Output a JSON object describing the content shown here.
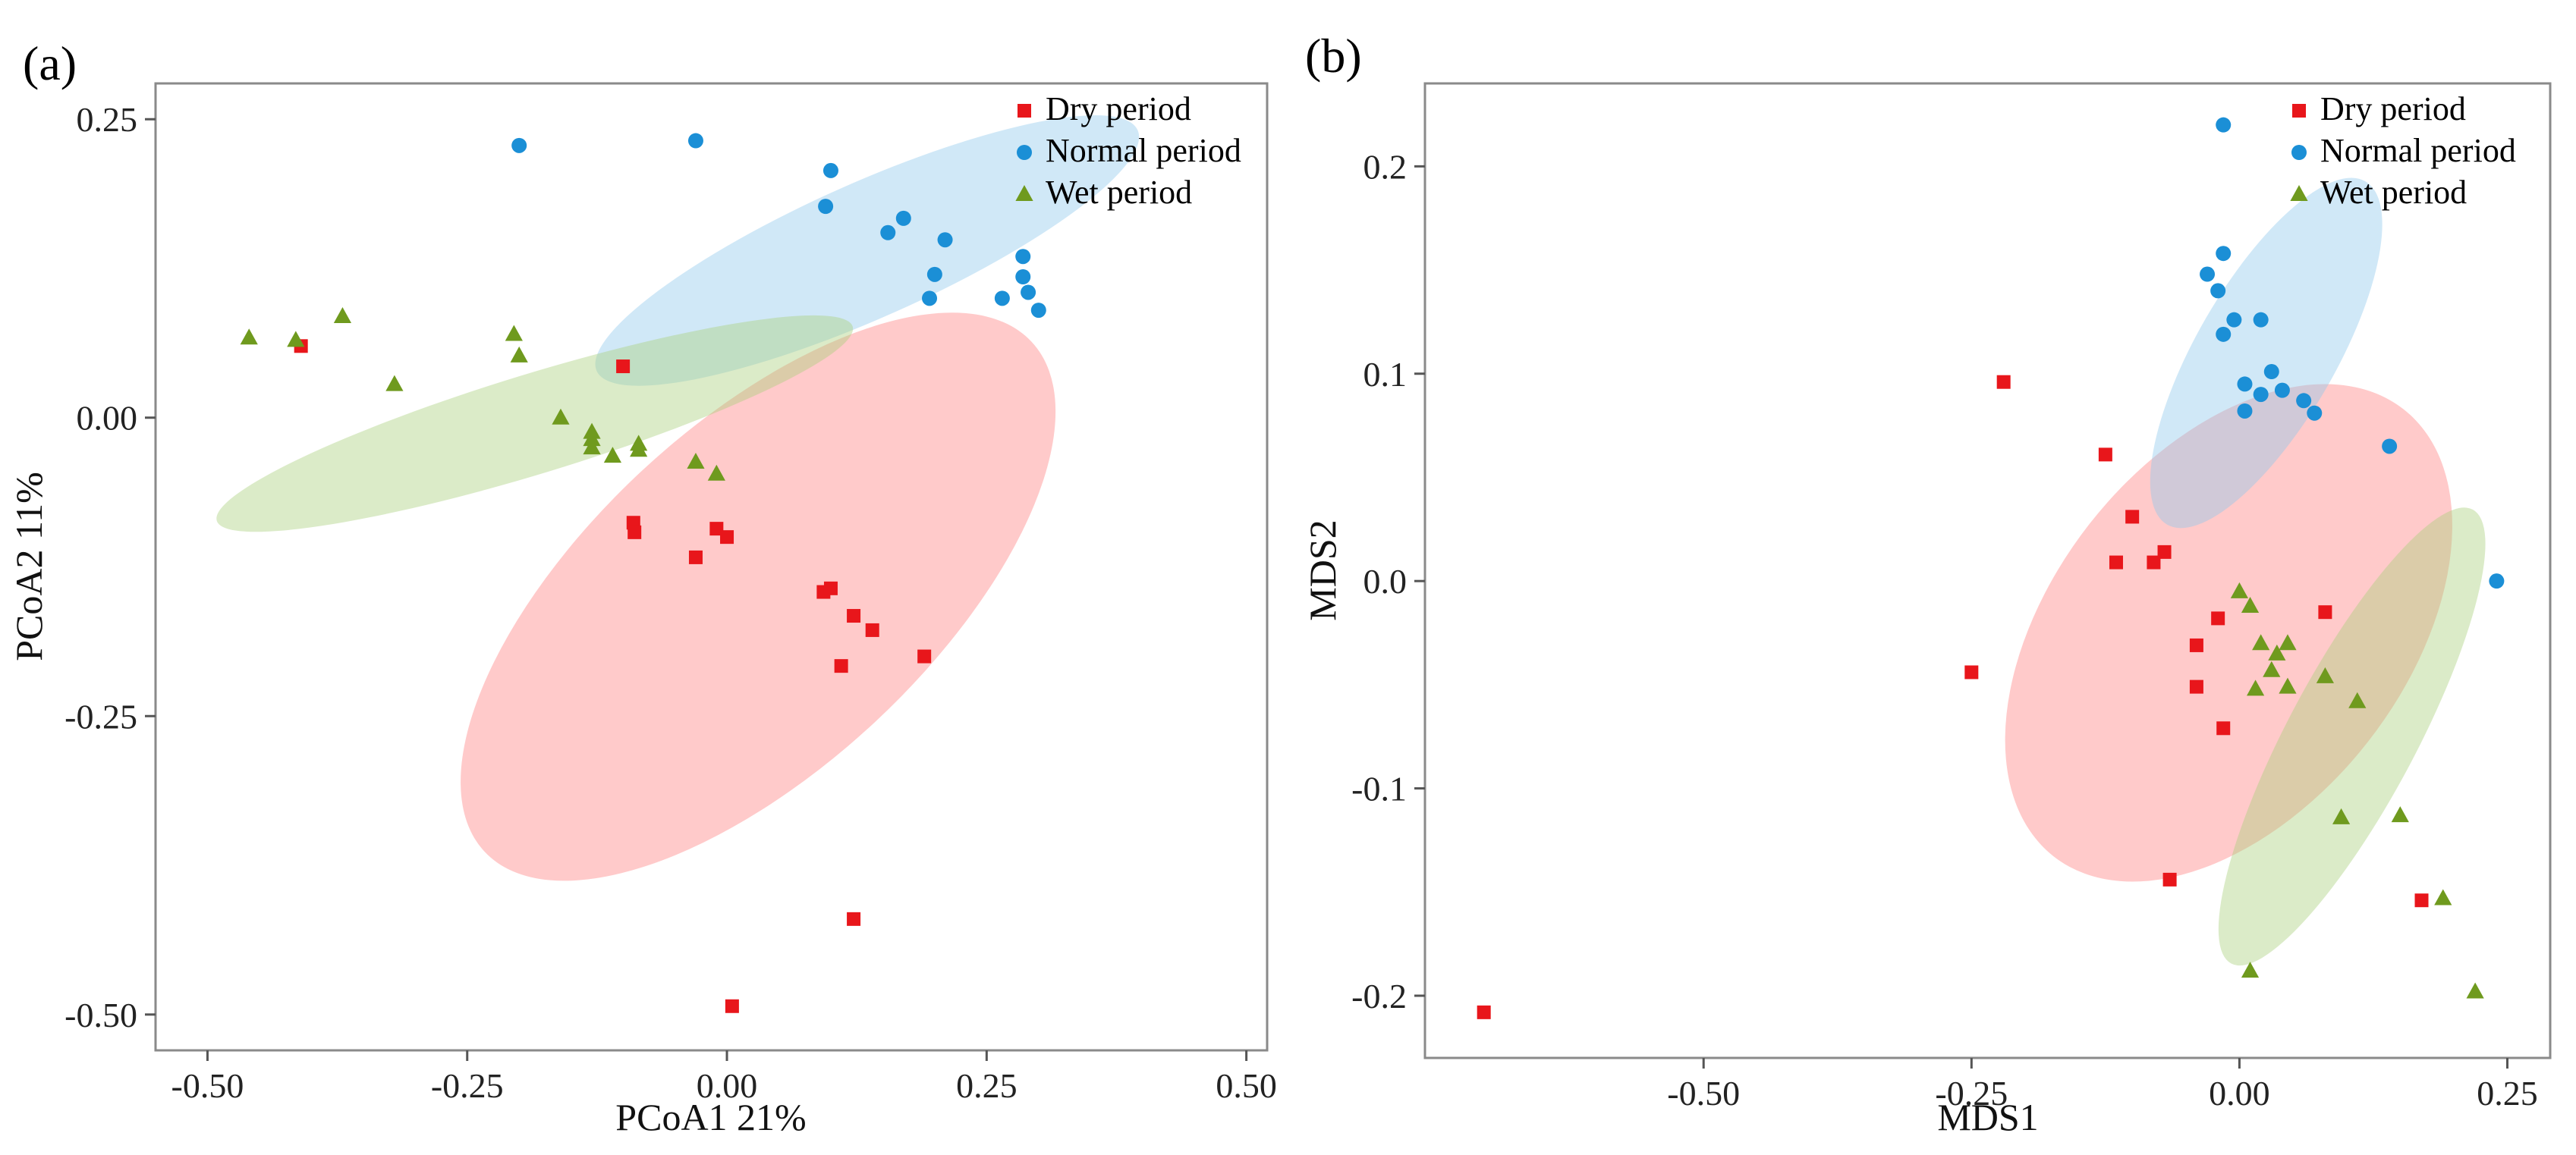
{
  "figure": {
    "panels": [
      "(a)",
      "(b)"
    ]
  },
  "colors": {
    "dry": "#e8161b",
    "normal": "#1b8fd6",
    "wet": "#6f9a1e",
    "dry_ellipse": "#ff8080",
    "normal_ellipse": "#8ec8ec",
    "wet_ellipse": "#a9cf7b"
  },
  "chart_data": [
    {
      "type": "scatter",
      "panel": "(a)",
      "title": "",
      "xlabel": "PCoA1 21%",
      "ylabel": "PCoA2 11%",
      "xlim": [
        -0.55,
        0.52
      ],
      "ylim": [
        -0.53,
        0.28
      ],
      "xticks": [
        -0.5,
        -0.25,
        0.0,
        0.25,
        0.5
      ],
      "xtick_labels": [
        "-0.50",
        "-0.25",
        "0.00",
        "0.25",
        "0.50"
      ],
      "yticks": [
        0.25,
        0.0,
        -0.25,
        -0.5
      ],
      "ytick_labels": [
        "0.25",
        "0.00",
        "-0.25",
        "-0.50"
      ],
      "grid": false,
      "legend_position": "top-right",
      "series": [
        {
          "name": "Dry period",
          "marker": "square",
          "color_key": "dry",
          "points": [
            [
              -0.41,
              0.06
            ],
            [
              -0.1,
              0.043
            ],
            [
              -0.09,
              -0.088
            ],
            [
              -0.089,
              -0.096
            ],
            [
              -0.03,
              -0.117
            ],
            [
              -0.01,
              -0.093
            ],
            [
              0.0,
              -0.1
            ],
            [
              0.093,
              -0.146
            ],
            [
              0.1,
              -0.143
            ],
            [
              0.122,
              -0.166
            ],
            [
              0.14,
              -0.178
            ],
            [
              0.11,
              -0.208
            ],
            [
              0.19,
              -0.2
            ],
            [
              0.122,
              -0.42
            ],
            [
              0.005,
              -0.493
            ]
          ],
          "ellipse": {
            "cx": 0.03,
            "cy": -0.15,
            "rx": 0.36,
            "ry": 0.165,
            "angle_deg": 43
          }
        },
        {
          "name": "Normal period",
          "marker": "circle",
          "color_key": "normal",
          "points": [
            [
              -0.2,
              0.228
            ],
            [
              -0.03,
              0.232
            ],
            [
              0.1,
              0.207
            ],
            [
              0.095,
              0.177
            ],
            [
              0.17,
              0.167
            ],
            [
              0.21,
              0.149
            ],
            [
              0.155,
              0.155
            ],
            [
              0.2,
              0.12
            ],
            [
              0.195,
              0.1
            ],
            [
              0.265,
              0.1
            ],
            [
              0.285,
              0.135
            ],
            [
              0.285,
              0.118
            ],
            [
              0.29,
              0.105
            ],
            [
              0.3,
              0.09
            ]
          ],
          "ellipse": {
            "cx": 0.135,
            "cy": 0.14,
            "rx": 0.285,
            "ry": 0.065,
            "angle_deg": 24
          }
        },
        {
          "name": "Wet period",
          "marker": "triangle",
          "color_key": "wet",
          "points": [
            [
              -0.46,
              0.067
            ],
            [
              -0.415,
              0.065
            ],
            [
              -0.37,
              0.085
            ],
            [
              -0.32,
              0.028
            ],
            [
              -0.205,
              0.07
            ],
            [
              -0.2,
              0.052
            ],
            [
              -0.16,
              0.0
            ],
            [
              -0.13,
              -0.012
            ],
            [
              -0.13,
              -0.018
            ],
            [
              -0.13,
              -0.025
            ],
            [
              -0.11,
              -0.032
            ],
            [
              -0.085,
              -0.022
            ],
            [
              -0.085,
              -0.027
            ],
            [
              -0.03,
              -0.037
            ],
            [
              -0.01,
              -0.047
            ]
          ],
          "ellipse": {
            "cx": -0.185,
            "cy": -0.005,
            "rx": 0.32,
            "ry": 0.048,
            "angle_deg": 17
          }
        }
      ]
    },
    {
      "type": "scatter",
      "panel": "(b)",
      "title": "",
      "xlabel": "MDS1",
      "ylabel": "MDS2",
      "xlim": [
        -0.76,
        0.29
      ],
      "ylim": [
        -0.23,
        0.24
      ],
      "xticks": [
        -0.5,
        -0.25,
        0.0,
        0.25
      ],
      "xtick_labels": [
        "-0.50",
        "-0.25",
        "0.00",
        "0.25"
      ],
      "yticks": [
        0.2,
        0.1,
        0.0,
        -0.1,
        -0.2
      ],
      "ytick_labels": [
        "0.2",
        "0.1",
        "0.0",
        "-0.1",
        "-0.2"
      ],
      "grid": false,
      "legend_position": "top-right",
      "series": [
        {
          "name": "Dry period",
          "marker": "square",
          "color_key": "dry",
          "points": [
            [
              -0.22,
              0.096
            ],
            [
              -0.125,
              0.061
            ],
            [
              -0.1,
              0.031
            ],
            [
              -0.115,
              0.009
            ],
            [
              -0.08,
              0.009
            ],
            [
              -0.07,
              0.014
            ],
            [
              -0.02,
              -0.018
            ],
            [
              0.08,
              -0.015
            ],
            [
              -0.04,
              -0.031
            ],
            [
              -0.04,
              -0.051
            ],
            [
              -0.015,
              -0.071
            ],
            [
              -0.25,
              -0.044
            ],
            [
              -0.065,
              -0.144
            ],
            [
              0.17,
              -0.154
            ],
            [
              -0.705,
              -0.208
            ]
          ],
          "ellipse": {
            "cx": -0.01,
            "cy": -0.025,
            "rx": 0.265,
            "ry": 0.165,
            "angle_deg": 52
          }
        },
        {
          "name": "Normal period",
          "marker": "circle",
          "color_key": "normal",
          "points": [
            [
              -0.015,
              0.22
            ],
            [
              -0.03,
              0.148
            ],
            [
              -0.015,
              0.158
            ],
            [
              -0.02,
              0.14
            ],
            [
              -0.005,
              0.126
            ],
            [
              0.02,
              0.126
            ],
            [
              -0.015,
              0.119
            ],
            [
              0.03,
              0.101
            ],
            [
              0.005,
              0.095
            ],
            [
              0.02,
              0.09
            ],
            [
              0.04,
              0.092
            ],
            [
              0.06,
              0.087
            ],
            [
              0.07,
              0.081
            ],
            [
              0.005,
              0.082
            ],
            [
              0.14,
              0.065
            ],
            [
              0.24,
              0.0
            ]
          ],
          "ellipse": {
            "cx": 0.025,
            "cy": 0.11,
            "rx": 0.185,
            "ry": 0.065,
            "angle_deg": 60
          }
        },
        {
          "name": "Wet period",
          "marker": "triangle",
          "color_key": "wet",
          "points": [
            [
              0.0,
              -0.005
            ],
            [
              0.01,
              -0.012
            ],
            [
              0.02,
              -0.03
            ],
            [
              0.035,
              -0.035
            ],
            [
              0.045,
              -0.03
            ],
            [
              0.03,
              -0.043
            ],
            [
              0.045,
              -0.051
            ],
            [
              0.015,
              -0.052
            ],
            [
              0.08,
              -0.046
            ],
            [
              0.11,
              -0.058
            ],
            [
              0.095,
              -0.114
            ],
            [
              0.15,
              -0.113
            ],
            [
              0.19,
              -0.153
            ],
            [
              0.01,
              -0.188
            ],
            [
              0.22,
              -0.198
            ]
          ],
          "ellipse": {
            "cx": 0.105,
            "cy": -0.075,
            "rx": 0.24,
            "ry": 0.06,
            "angle_deg": 62
          }
        }
      ]
    }
  ]
}
